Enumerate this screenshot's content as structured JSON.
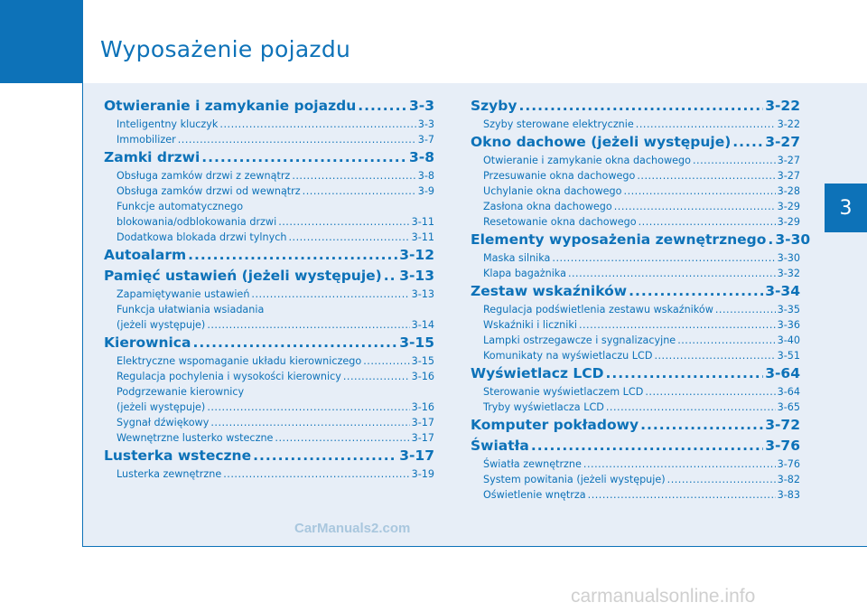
{
  "page": {
    "title": "Wyposażenie pojazdu",
    "chapter_tab": "3",
    "watermark_primary": "CarManuals2.com",
    "watermark_secondary": "carmanualsonline.info"
  },
  "toc": {
    "left": [
      {
        "title": "Otwieranie i zamykanie pojazdu",
        "page": "3-3",
        "items": [
          {
            "text": "Inteligentny kluczyk",
            "page": "3-3"
          },
          {
            "text": "Immobilizer",
            "page": "3-7"
          }
        ]
      },
      {
        "title": "Zamki drzwi",
        "page": "3-8",
        "items": [
          {
            "text": "Obsługa zamków drzwi z zewnątrz",
            "page": "3-8"
          },
          {
            "text": "Obsługa zamków drzwi od wewnątrz",
            "page": "3-9"
          },
          {
            "text": "Funkcje automatycznego",
            "page": null
          },
          {
            "text": "blokowania/odblokowania drzwi",
            "page": "3-11"
          },
          {
            "text": "Dodatkowa blokada drzwi tylnych",
            "page": "3-11"
          }
        ]
      },
      {
        "title": "Autoalarm",
        "page": "3-12",
        "items": []
      },
      {
        "title": "Pamięć ustawień (jeżeli występuje)",
        "page": "3-13",
        "items": [
          {
            "text": "Zapamiętywanie ustawień",
            "page": "3-13"
          },
          {
            "text": "Funkcja ułatwiania wsiadania",
            "page": null
          },
          {
            "text": "(jeżeli występuje)",
            "page": "3-14"
          }
        ]
      },
      {
        "title": "Kierownica",
        "page": "3-15",
        "items": [
          {
            "text": "Elektryczne wspomaganie układu kierowniczego",
            "page": "3-15"
          },
          {
            "text": "Regulacja pochylenia i wysokości kierownicy",
            "page": "3-16"
          },
          {
            "text": "Podgrzewanie kierownicy",
            "page": null
          },
          {
            "text": "(jeżeli występuje)",
            "page": "3-16"
          },
          {
            "text": "Sygnał dźwiękowy",
            "page": "3-17"
          },
          {
            "text": "Wewnętrzne lusterko wsteczne",
            "page": "3-17"
          }
        ]
      },
      {
        "title": "Lusterka wsteczne",
        "page": "3-17",
        "items": [
          {
            "text": "Lusterka zewnętrzne",
            "page": "3-19"
          }
        ]
      }
    ],
    "right": [
      {
        "title": "Szyby",
        "page": "3-22",
        "items": [
          {
            "text": "Szyby sterowane elektrycznie",
            "page": "3-22"
          }
        ]
      },
      {
        "title": "Okno dachowe (jeżeli występuje)",
        "page": "3-27",
        "items": [
          {
            "text": "Otwieranie i zamykanie okna dachowego",
            "page": "3-27"
          },
          {
            "text": "Przesuwanie okna dachowego",
            "page": "3-27"
          },
          {
            "text": "Uchylanie okna dachowego",
            "page": "3-28"
          },
          {
            "text": "Zasłona okna dachowego",
            "page": "3-29"
          },
          {
            "text": "Resetowanie okna dachowego",
            "page": "3-29"
          }
        ]
      },
      {
        "title": "Elementy wyposażenia zewnętrznego",
        "page": "3-30",
        "items": [
          {
            "text": "Maska silnika",
            "page": "3-30"
          },
          {
            "text": "Klapa bagażnika",
            "page": "3-32"
          }
        ]
      },
      {
        "title": "Zestaw wskaźników",
        "page": "3-34",
        "items": [
          {
            "text": "Regulacja podświetlenia zestawu wskaźników",
            "page": "3-35"
          },
          {
            "text": "Wskaźniki i liczniki",
            "page": "3-36"
          },
          {
            "text": "Lampki ostrzegawcze i sygnalizacyjne",
            "page": "3-40"
          },
          {
            "text": "Komunikaty na wyświetlaczu LCD",
            "page": "3-51"
          }
        ]
      },
      {
        "title": "Wyświetlacz LCD",
        "page": "3-64",
        "items": [
          {
            "text": "Sterowanie wyświetlaczem LCD",
            "page": "3-64"
          },
          {
            "text": "Tryby wyświetlacza LCD",
            "page": "3-65"
          }
        ]
      },
      {
        "title": "Komputer pokładowy",
        "page": "3-72",
        "items": []
      },
      {
        "title": "Światła",
        "page": "3-76",
        "items": [
          {
            "text": "Światła zewnętrzne",
            "page": "3-76"
          },
          {
            "text": "System powitania (jeżeli występuje)",
            "page": "3-82"
          },
          {
            "text": "Oświetlenie wnętrza",
            "page": "3-83"
          }
        ]
      }
    ]
  }
}
